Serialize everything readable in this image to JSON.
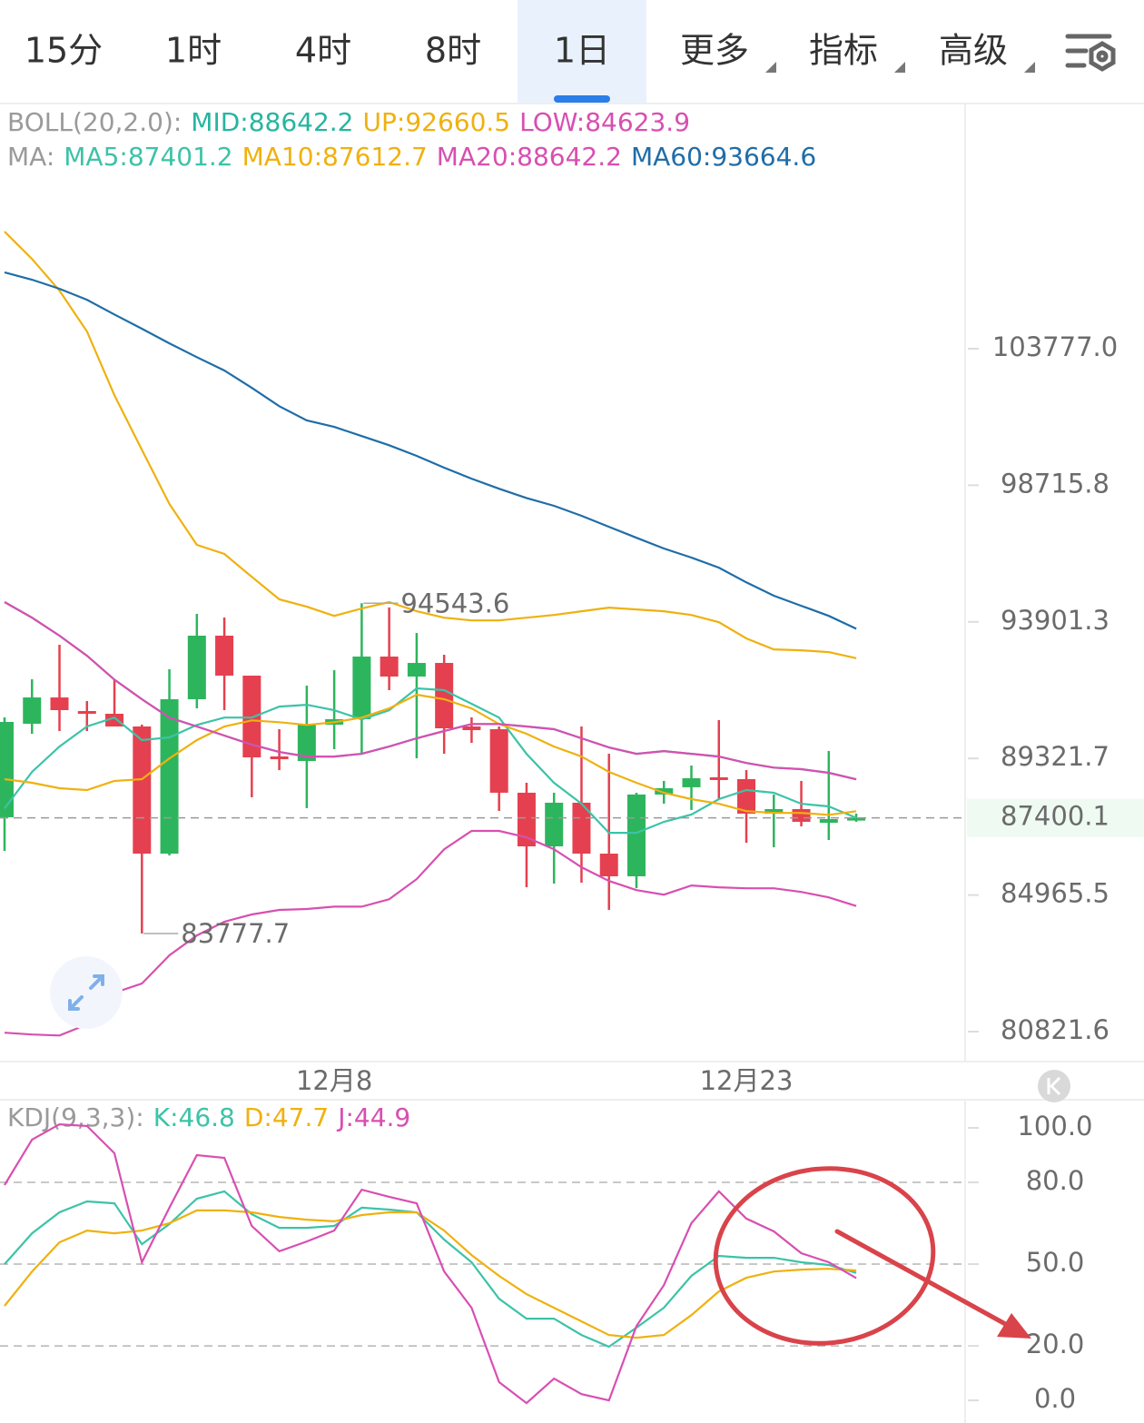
{
  "tabs": [
    {
      "label": "15分",
      "selected": false,
      "dropdown": false
    },
    {
      "label": "1时",
      "selected": false,
      "dropdown": false
    },
    {
      "label": "4时",
      "selected": false,
      "dropdown": false
    },
    {
      "label": "8时",
      "selected": false,
      "dropdown": false
    },
    {
      "label": "1日",
      "selected": true,
      "dropdown": false
    },
    {
      "label": "更多",
      "selected": false,
      "dropdown": true
    },
    {
      "label": "指标",
      "selected": false,
      "dropdown": true
    },
    {
      "label": "高级",
      "selected": false,
      "dropdown": true
    }
  ],
  "chart_data": [
    {
      "type": "candlestick",
      "log_scale": true,
      "up_color": "#2db55d",
      "down_color": "#e5404f",
      "categories": [
        null,
        null,
        null,
        null,
        null,
        null,
        null,
        null,
        null,
        null,
        null,
        null,
        "12月8",
        null,
        null,
        null,
        null,
        null,
        null,
        null,
        null,
        null,
        null,
        null,
        null,
        null,
        null,
        "12月23",
        null,
        null,
        null,
        null
      ],
      "open": [
        87419,
        90464,
        91339,
        90885,
        90795,
        90373,
        86263,
        91279,
        93428,
        92071,
        89387,
        89238,
        90434,
        90614,
        92716,
        92040,
        92500,
        90373,
        90283,
        88208,
        86493,
        87886,
        86263,
        85550,
        88150,
        88384,
        88707,
        88648,
        87535,
        87681,
        87244,
        87361
      ],
      "high": [
        90675,
        91948,
        93117,
        91218,
        91948,
        90434,
        92286,
        94177,
        94051,
        92071,
        90283,
        91734,
        92254,
        94543.6,
        94400,
        93520,
        92778,
        90675,
        90373,
        88531,
        88208,
        90373,
        89476,
        88208,
        88590,
        89090,
        90584,
        88941,
        88150,
        88590,
        89566,
        87535
      ],
      "low": [
        86350,
        90133,
        90223,
        90223,
        90373,
        83777.7,
        86206,
        90976,
        90916,
        88061,
        88941,
        87711,
        89625,
        89476,
        91583,
        89327,
        89476,
        89834,
        87623,
        85208,
        85322,
        85350,
        84503,
        85180,
        87856,
        87652,
        88003,
        86608,
        86465,
        87129,
        86695,
        87274
      ],
      "close": [
        90524,
        91339,
        90916,
        90795,
        90373,
        86263,
        91279,
        93428,
        92071,
        89357,
        89297,
        90434,
        90614,
        92716,
        92040,
        92500,
        90313,
        90253,
        88208,
        86493,
        87886,
        86263,
        85550,
        88150,
        88355,
        88677,
        88648,
        87535,
        87681,
        87274,
        87361,
        87400.1
      ],
      "ylim": [
        79966.5,
        113485
      ],
      "yticks": [
        80821.6,
        84965.5,
        89321.7,
        93901.3,
        98715.8,
        {
          "value": 103777,
          "label": "103777.0"
        }
      ],
      "indicators": [
        {
          "label": "BOLL(20,2.0):",
          "series": [
            {
              "name": "MID:88642.2",
              "color": "#26b5a0",
              "values": [
                94583,
                94046,
                93428,
                92744,
                91936,
                91278,
                90668,
                90373,
                90073,
                89773,
                89533,
                89383,
                89383,
                89473,
                89713,
                89983,
                90223,
                90455,
                90455,
                90373,
                90283,
                89983,
                89683,
                89473,
                89563,
                89473,
                89383,
                89173,
                89023,
                88973,
                88854,
                88642.2
              ]
            },
            {
              "name": "UP:92660.5",
              "color": "#efb10f",
              "values": [
                108325,
                107241,
                106008,
                104434,
                102026,
                100004,
                98042,
                96586,
                96265,
                95462,
                94678,
                94425,
                94109,
                94362,
                94583,
                94267,
                94046,
                93951,
                93951,
                94046,
                94140,
                94267,
                94394,
                94330,
                94267,
                94140,
                93888,
                93335,
                92961,
                92930,
                92868,
                92660.5
              ]
            },
            {
              "name": "LOW:84623.9",
              "color": "#d84fb1",
              "values": [
                80789,
                80735,
                80707,
                81034,
                81979,
                82255,
                83111,
                83717,
                84138,
                84363,
                84504,
                84532,
                84604,
                84604,
                84833,
                85462,
                86401,
                86982,
                86982,
                86779,
                86401,
                85834,
                85405,
                85119,
                84976,
                85262,
                85205,
                85176,
                85176,
                85062,
                84891,
                84623.9
              ]
            }
          ]
        },
        {
          "label": "MA:",
          "series": [
            {
              "name": "MA5:87401.2",
              "color": "#3cc3a8",
              "values": [
                87704,
                88884,
                89713,
                90373,
                90668,
                89923,
                90013,
                90424,
                90668,
                90668,
                91034,
                91095,
                90912,
                90607,
                90912,
                91644,
                91583,
                91126,
                90668,
                89473,
                88530,
                87852,
                86924,
                86924,
                87274,
                87506,
                88000,
                88294,
                88206,
                87852,
                87768,
                87401.2
              ]
            },
            {
              "name": "MA10:87612.7",
              "color": "#efb10f",
              "values": [
                88648,
                88530,
                88353,
                88294,
                88589,
                88648,
                89323,
                89923,
                90373,
                90576,
                90515,
                90424,
                90515,
                90668,
                90973,
                91431,
                91278,
                90973,
                90455,
                90133,
                89713,
                89383,
                88884,
                88530,
                88206,
                88000,
                87852,
                87616,
                87557,
                87557,
                87498,
                87612.7
              ]
            },
            {
              "name": "MA20:88642.2",
              "color": "#d84fb1",
              "values": [
                94583,
                94046,
                93428,
                92744,
                91936,
                91278,
                90668,
                90373,
                90073,
                89773,
                89533,
                89383,
                89383,
                89473,
                89713,
                89983,
                90223,
                90455,
                90455,
                90373,
                90283,
                89983,
                89683,
                89473,
                89563,
                89473,
                89383,
                89173,
                89023,
                88973,
                88854,
                88642.2
              ]
            },
            {
              "name": "MA60:93664.6",
              "color": "#1f6da8",
              "values": [
                106718,
                106434,
                106079,
                105653,
                105085,
                104539,
                103981,
                103457,
                102953,
                102301,
                101615,
                101086,
                100849,
                100511,
                100173,
                99786,
                99354,
                98956,
                98590,
                98258,
                97977,
                97618,
                97227,
                96836,
                96458,
                96137,
                95783,
                95270,
                94804,
                94457,
                94109,
                93664.6
              ]
            }
          ]
        }
      ]
    },
    {
      "type": "line",
      "title": "KDJ(9,3,3):",
      "ylim": [
        -8.3,
        110
      ],
      "yticks": [
        {
          "value": 0,
          "label": "0.0"
        },
        {
          "value": 20,
          "label": "20.0"
        },
        {
          "value": 50,
          "label": "50.0"
        },
        {
          "value": 80,
          "label": "80.0"
        },
        {
          "value": 100,
          "label": "100.0"
        }
      ],
      "series": [
        {
          "name": "K:46.8",
          "color": "#3cc3a8",
          "values": [
            50.0,
            61.3,
            69.0,
            73.0,
            72.3,
            57.3,
            64.7,
            74.0,
            76.7,
            68.3,
            63.3,
            63.3,
            64.0,
            70.7,
            70.0,
            69.0,
            59.0,
            50.7,
            37.3,
            30.0,
            30.0,
            24.0,
            19.7,
            26.7,
            34.0,
            45.7,
            53.0,
            52.3,
            52.3,
            50.7,
            49.7,
            46.8
          ]
        },
        {
          "name": "D:47.7",
          "color": "#efb10f",
          "values": [
            34.7,
            47.3,
            58.0,
            62.3,
            61.3,
            62.3,
            65.0,
            69.7,
            69.7,
            69.0,
            67.3,
            66.3,
            65.7,
            68.0,
            69.0,
            69.0,
            62.3,
            53.3,
            45.7,
            39.0,
            34.0,
            29.0,
            24.0,
            23.0,
            24.0,
            31.3,
            40.0,
            45.0,
            47.3,
            48.0,
            48.3,
            47.7
          ]
        },
        {
          "name": "J:44.9",
          "color": "#d84fb1",
          "values": [
            79.0,
            95.7,
            101.3,
            100.7,
            90.7,
            50.7,
            70.7,
            90.0,
            89.0,
            64.0,
            54.7,
            58.3,
            62.3,
            77.3,
            74.7,
            72.3,
            47.3,
            34.0,
            6.7,
            -1.0,
            8.0,
            2.3,
            0.0,
            27.3,
            42.3,
            65.0,
            76.7,
            66.7,
            62.0,
            54.0,
            50.7,
            44.9
          ]
        }
      ]
    }
  ]
}
